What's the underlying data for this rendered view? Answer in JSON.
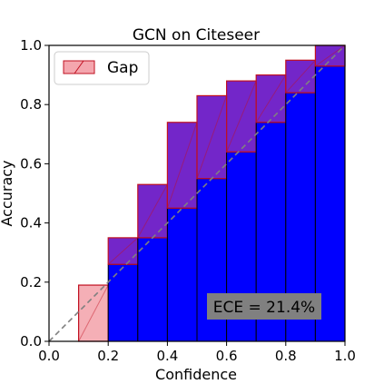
{
  "chart_data": {
    "type": "bar",
    "title": "GCN on Citeseer",
    "xlabel": "Confidence",
    "ylabel": "Accuracy",
    "xlim": [
      0,
      1
    ],
    "ylim": [
      0,
      1
    ],
    "xticks": [
      "0.0",
      "0.2",
      "0.4",
      "0.6",
      "0.8",
      "1.0"
    ],
    "yticks": [
      "0.0",
      "0.2",
      "0.4",
      "0.6",
      "0.8",
      "1.0"
    ],
    "bin_edges": [
      0.0,
      0.1,
      0.2,
      0.3,
      0.4,
      0.5,
      0.6,
      0.7,
      0.8,
      0.9,
      1.0
    ],
    "bins": [
      {
        "lo": 0.0,
        "hi": 0.1,
        "accuracy": 0.0,
        "confidence": 0.0
      },
      {
        "lo": 0.1,
        "hi": 0.2,
        "accuracy": 0.0,
        "confidence": 0.19
      },
      {
        "lo": 0.2,
        "hi": 0.3,
        "accuracy": 0.26,
        "confidence": 0.35
      },
      {
        "lo": 0.3,
        "hi": 0.4,
        "accuracy": 0.35,
        "confidence": 0.53
      },
      {
        "lo": 0.4,
        "hi": 0.5,
        "accuracy": 0.45,
        "confidence": 0.74
      },
      {
        "lo": 0.5,
        "hi": 0.6,
        "accuracy": 0.55,
        "confidence": 0.83
      },
      {
        "lo": 0.6,
        "hi": 0.7,
        "accuracy": 0.64,
        "confidence": 0.88
      },
      {
        "lo": 0.7,
        "hi": 0.8,
        "accuracy": 0.74,
        "confidence": 0.9
      },
      {
        "lo": 0.8,
        "hi": 0.9,
        "accuracy": 0.84,
        "confidence": 0.95
      },
      {
        "lo": 0.9,
        "hi": 1.0,
        "accuracy": 0.93,
        "confidence": 1.0
      }
    ],
    "series": [
      {
        "name": "Gap",
        "color": "#ff6b6b"
      }
    ],
    "colors": {
      "accuracy_bar": "#0000ff",
      "gap_over": "#5a00bf",
      "gap_under": "#f4a6ae",
      "gap_edge": "#c01020",
      "diagonal": "#808080"
    },
    "legend": {
      "label": "Gap",
      "placement": "top-left"
    },
    "annotation": "ECE = 21.4%",
    "grid": false
  }
}
